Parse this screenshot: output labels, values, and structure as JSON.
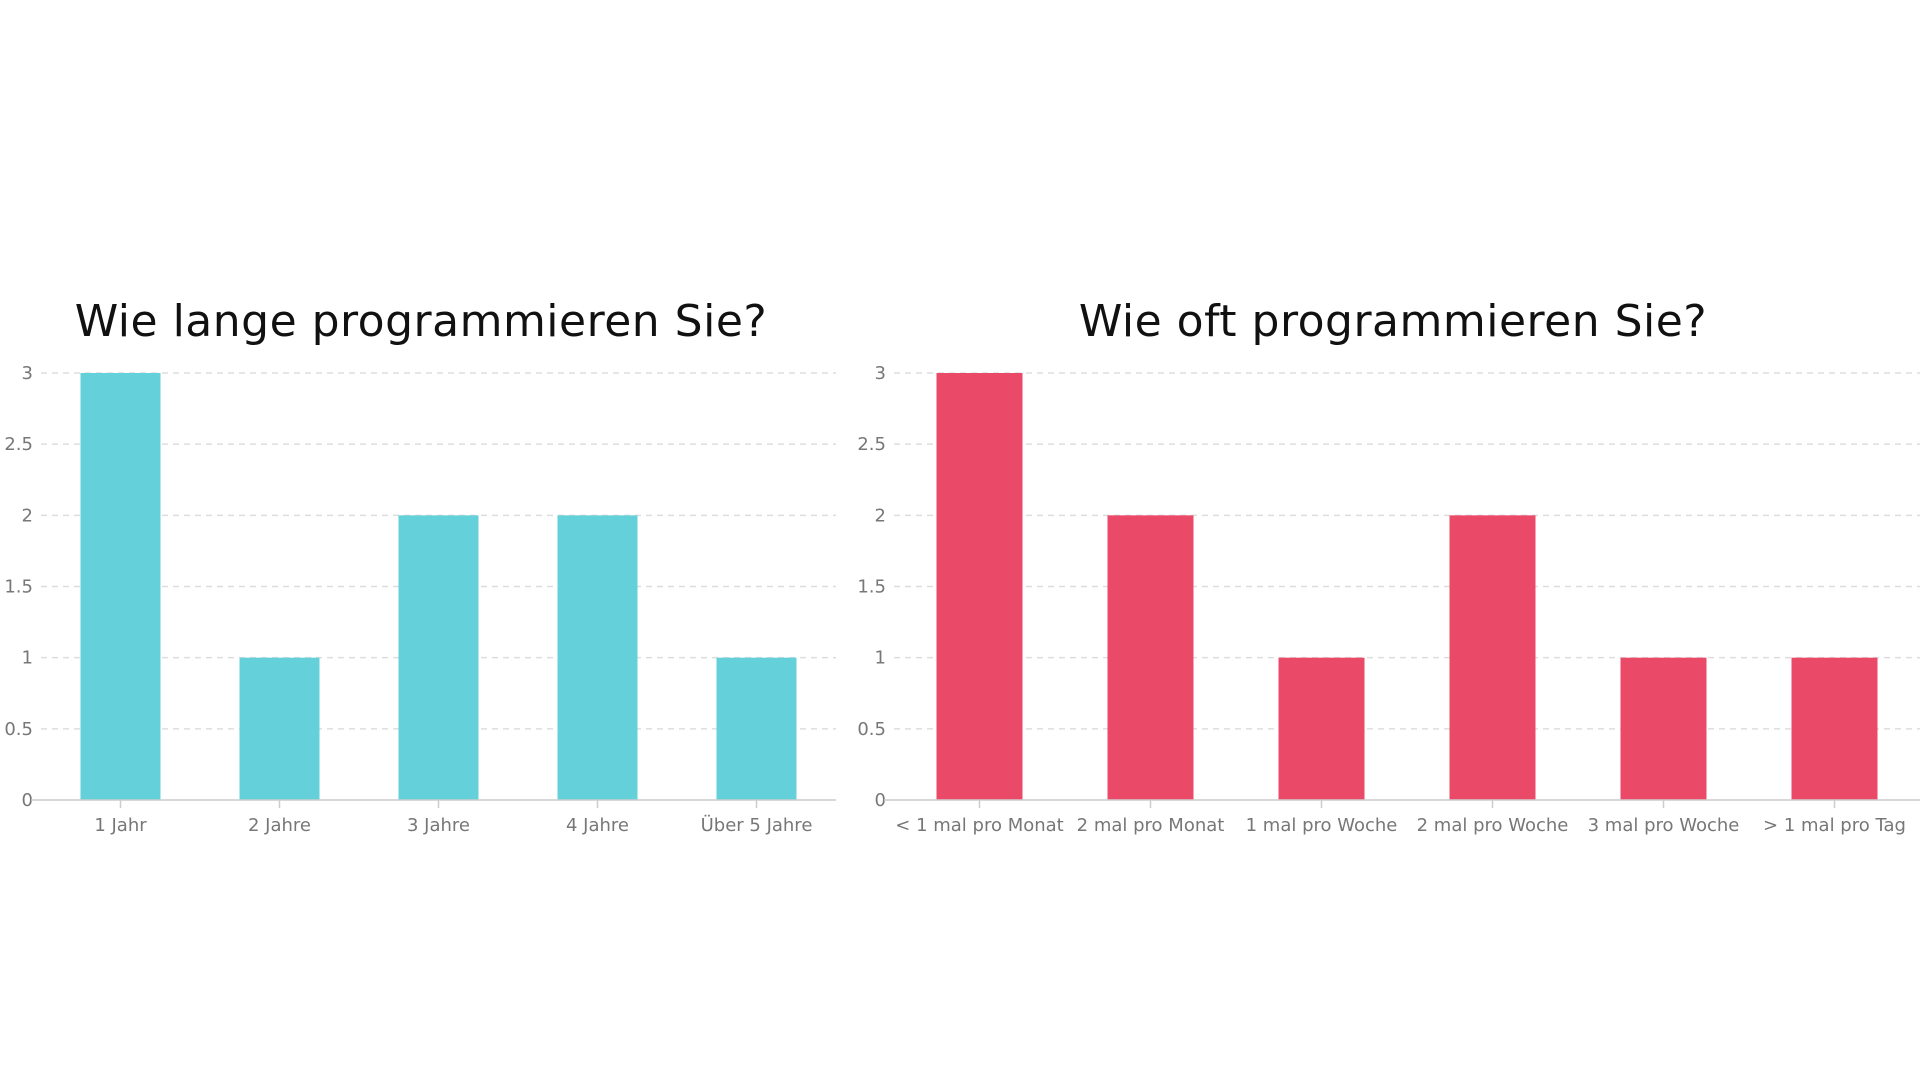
{
  "chart_data": [
    {
      "type": "bar",
      "title": "Wie lange programmieren Sie?",
      "categories": [
        "1 Jahr",
        "2 Jahre",
        "3 Jahre",
        "4 Jahre",
        "Über 5 Jahre"
      ],
      "values": [
        3,
        1,
        2,
        2,
        1
      ],
      "ylim": [
        0,
        3
      ],
      "yticks": [
        0,
        0.5,
        1,
        1.5,
        2,
        2.5,
        3
      ],
      "ytick_labels": [
        "0",
        "0.5",
        "1",
        "1.5",
        "2",
        "2.5",
        "3"
      ],
      "color": "#64d1da",
      "grid": true,
      "xlabel": "",
      "ylabel": ""
    },
    {
      "type": "bar",
      "title": "Wie oft programmieren Sie?",
      "categories": [
        "< 1 mal pro Monat",
        "2 mal pro Monat",
        "1 mal pro Woche",
        "2 mal pro Woche",
        "3 mal pro Woche",
        "> 1 mal pro Tag"
      ],
      "values": [
        3,
        2,
        1,
        2,
        1,
        1
      ],
      "ylim": [
        0,
        3
      ],
      "yticks": [
        0,
        0.5,
        1,
        1.5,
        2,
        2.5,
        3
      ],
      "ytick_labels": [
        "0",
        "0.5",
        "1",
        "1.5",
        "2",
        "2.5",
        "3"
      ],
      "color": "#ea4a68",
      "grid": true,
      "xlabel": "",
      "ylabel": ""
    }
  ]
}
